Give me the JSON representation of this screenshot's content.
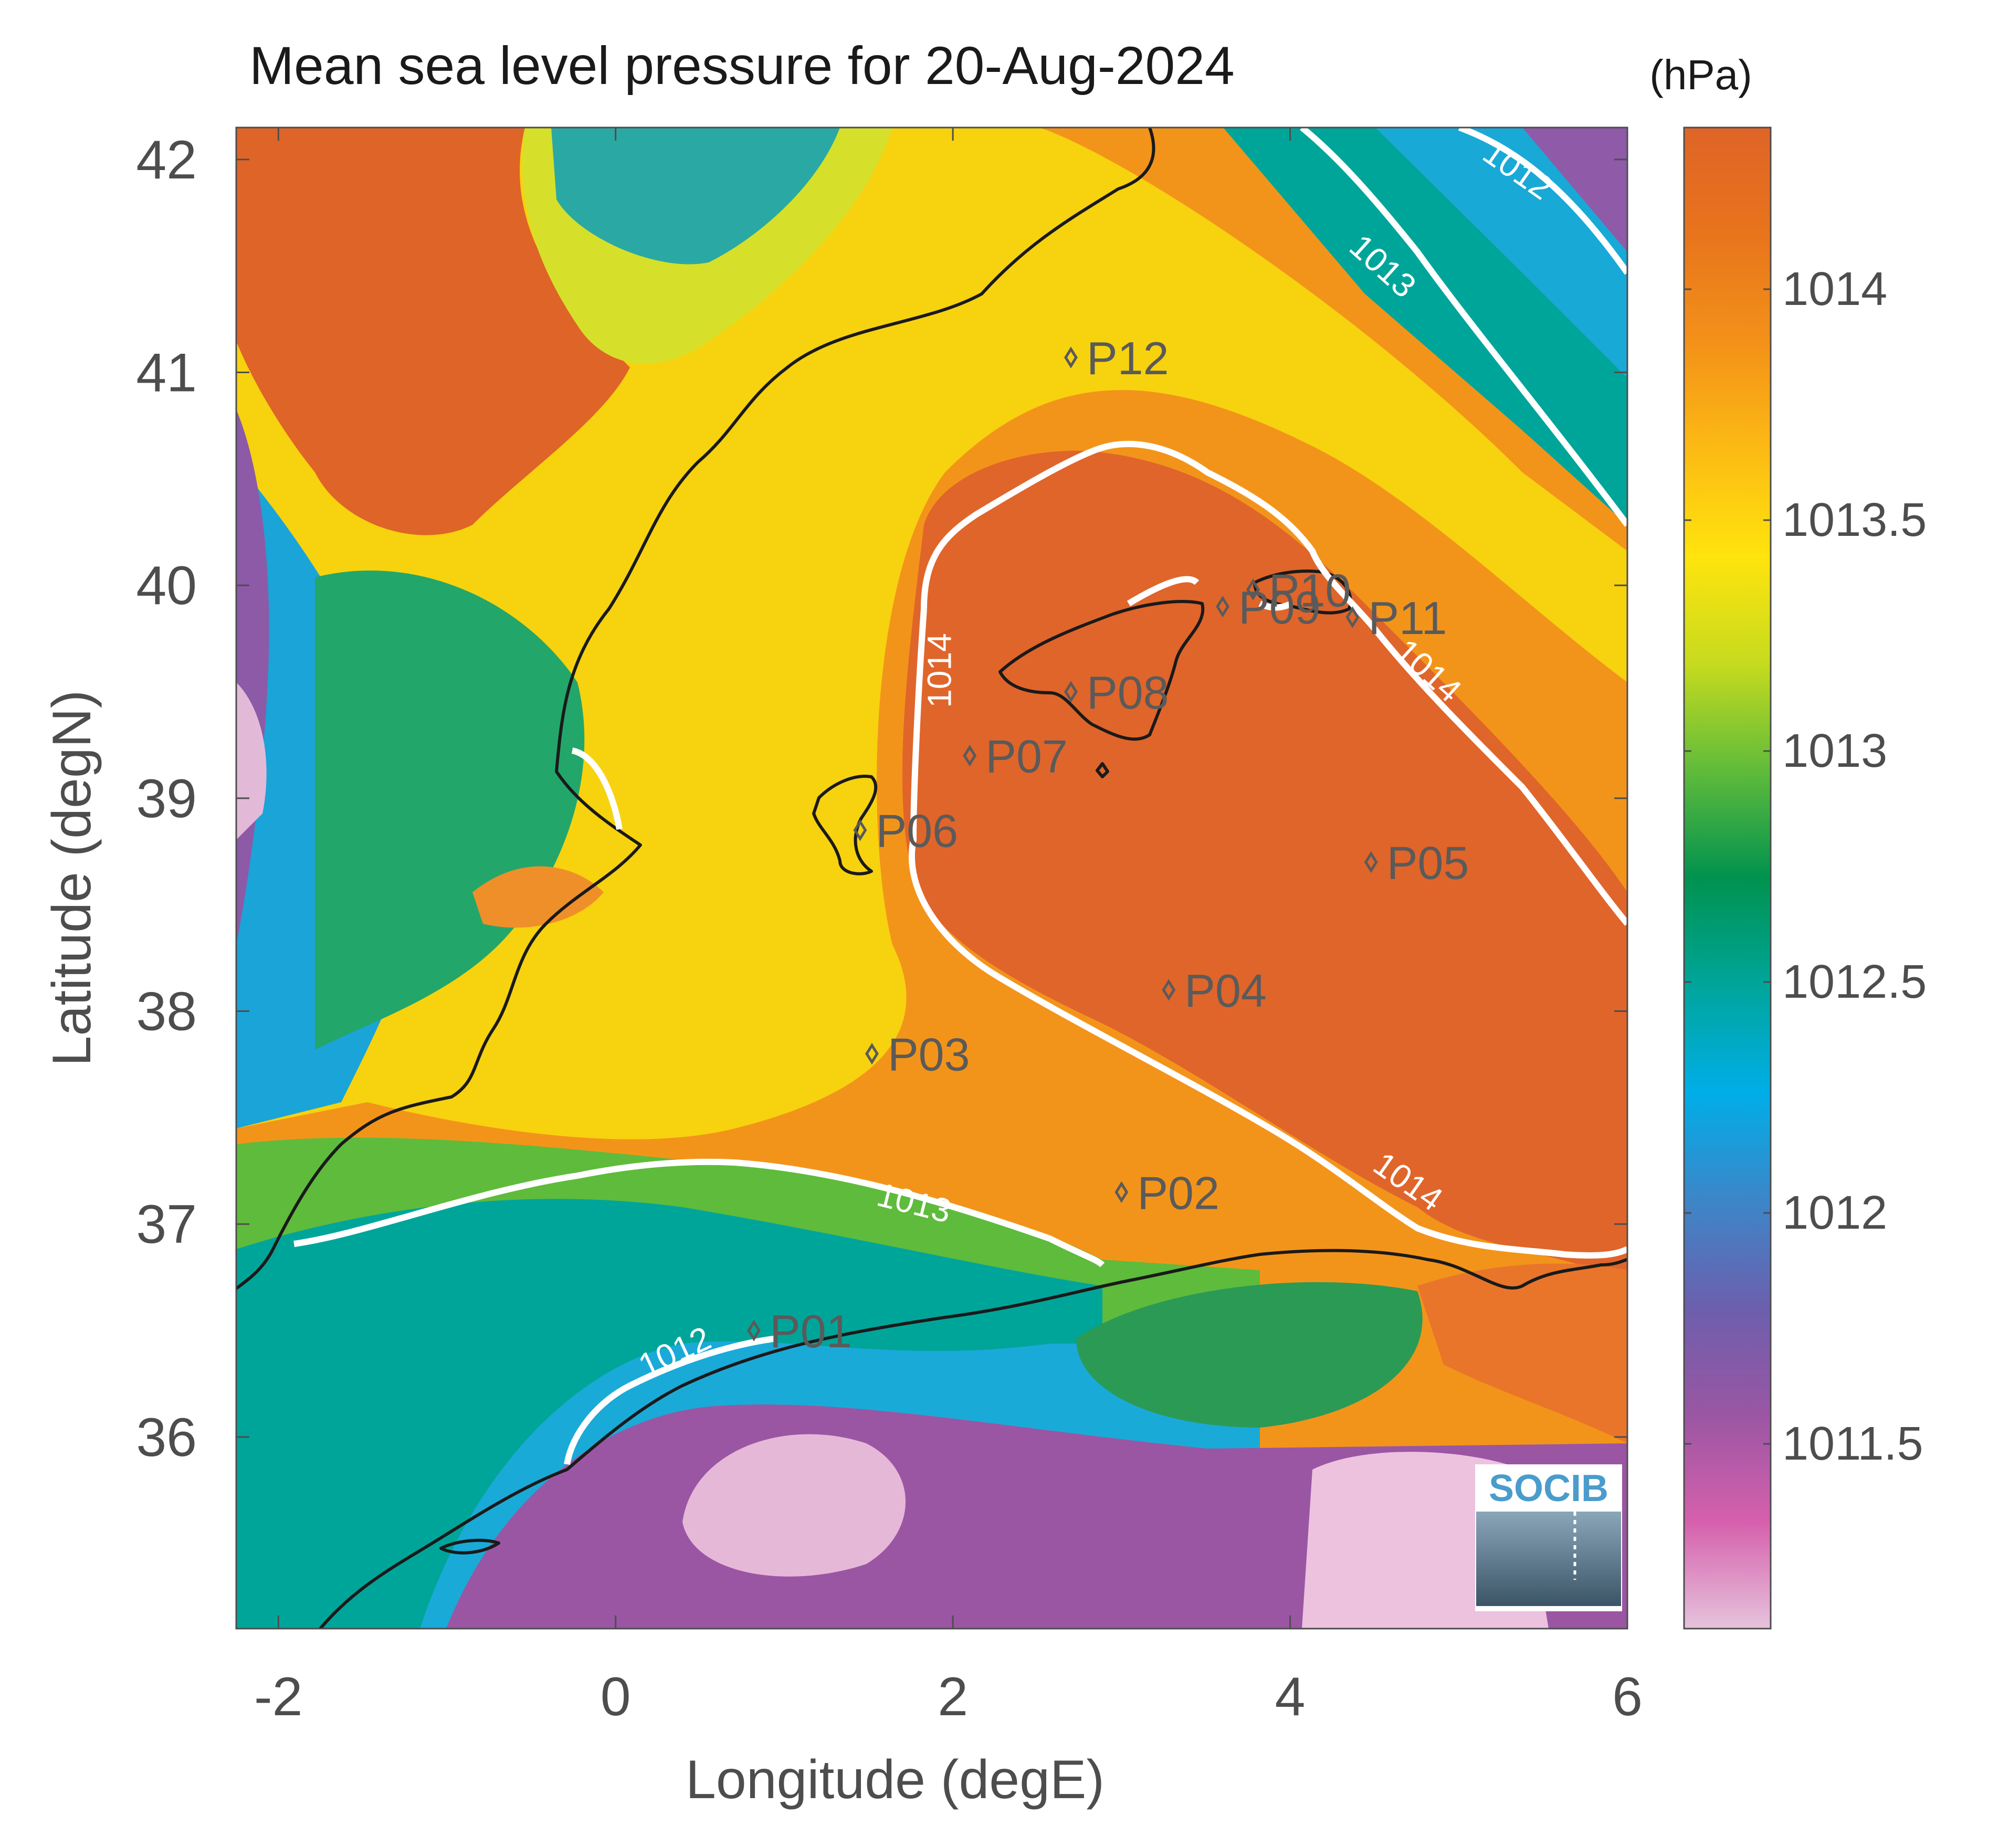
{
  "title": "Mean sea level pressure for 20-Aug-2024",
  "units": "(hPa)",
  "xaxis": {
    "label": "Longitude (degE)",
    "range": [
      -2.25,
      6
    ],
    "ticks": [
      -2,
      0,
      2,
      4,
      6
    ],
    "tick_labels": [
      "-2",
      "0",
      "2",
      "4",
      "6"
    ]
  },
  "yaxis": {
    "label": "Latitude (degN)",
    "range": [
      35.1,
      42.15
    ],
    "ticks": [
      36,
      37,
      38,
      39,
      40,
      41,
      42
    ],
    "tick_labels": [
      "36",
      "37",
      "38",
      "39",
      "40",
      "41",
      "42"
    ]
  },
  "colorbar": {
    "range": [
      1011.1,
      1014.35
    ],
    "ticks": [
      1011.5,
      1012,
      1012.5,
      1013,
      1013.5,
      1014
    ],
    "tick_labels": [
      "1011.5",
      "1012",
      "1012.5",
      "1013",
      "1013.5",
      "1014"
    ],
    "colors": [
      "#e6c3dc",
      "#d660ad",
      "#9a56a3",
      "#6c5fad",
      "#3c86c8",
      "#00aee8",
      "#00a59a",
      "#00924f",
      "#5fbb3b",
      "#c6db1e",
      "#ffe40d",
      "#fcba14",
      "#f39119",
      "#e8741c",
      "#df6427"
    ]
  },
  "contour_color": "#ffffff",
  "coastline_color": "#1a1a1a",
  "contour_labels": [
    {
      "text": "1012",
      "lon": 5.35,
      "lat": 41.95,
      "angle": 35
    },
    {
      "text": "1013",
      "lon": 4.55,
      "lat": 41.5,
      "angle": 42
    },
    {
      "text": "1014",
      "lon": 1.92,
      "lat": 39.6,
      "angle": -90
    },
    {
      "text": "1014",
      "lon": 4.82,
      "lat": 39.6,
      "angle": 42
    },
    {
      "text": "1013",
      "lon": 1.77,
      "lat": 37.1,
      "angle": 14
    },
    {
      "text": "1014",
      "lon": 4.7,
      "lat": 37.2,
      "angle": 35
    },
    {
      "text": "1012",
      "lon": 0.35,
      "lat": 36.4,
      "angle": -25
    }
  ],
  "stations": [
    {
      "name": "P01",
      "lon": 0.82,
      "lat": 36.5
    },
    {
      "name": "P02",
      "lon": 3.0,
      "lat": 37.15
    },
    {
      "name": "P03",
      "lon": 1.52,
      "lat": 37.8
    },
    {
      "name": "P04",
      "lon": 3.28,
      "lat": 38.1
    },
    {
      "name": "P05",
      "lon": 4.48,
      "lat": 38.7
    },
    {
      "name": "P06",
      "lon": 1.45,
      "lat": 38.85
    },
    {
      "name": "P07",
      "lon": 2.1,
      "lat": 39.2
    },
    {
      "name": "P08",
      "lon": 2.7,
      "lat": 39.5
    },
    {
      "name": "P09",
      "lon": 3.6,
      "lat": 39.9
    },
    {
      "name": "P10",
      "lon": 3.78,
      "lat": 39.98
    },
    {
      "name": "P11",
      "lon": 4.37,
      "lat": 39.85
    },
    {
      "name": "P12",
      "lon": 2.7,
      "lat": 41.07
    }
  ],
  "logo": {
    "text": "SOCIB"
  }
}
